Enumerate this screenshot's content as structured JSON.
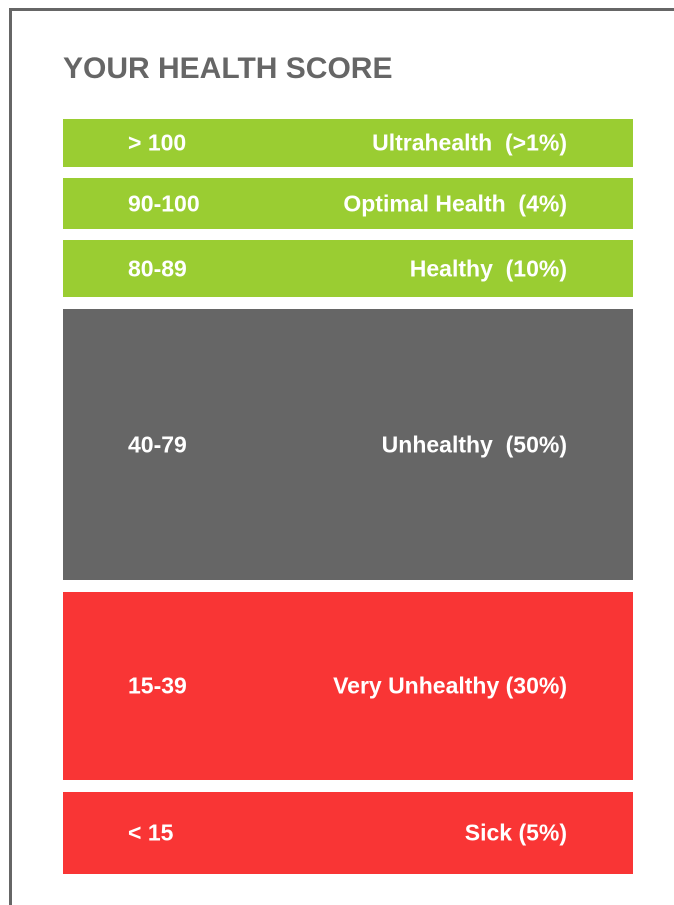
{
  "header": {
    "title": "YOUR HEALTH SCORE"
  },
  "rows": [
    {
      "range": "> 100",
      "label": "Ultrahealth  (>1%)"
    },
    {
      "range": "90-100",
      "label": "Optimal Health  (4%)"
    },
    {
      "range": "80-89",
      "label": "Healthy  (10%)"
    },
    {
      "range": "40-79",
      "label": "Unhealthy  (50%)"
    },
    {
      "range": "15-39",
      "label": "Very Unhealthy (30%)"
    },
    {
      "range": "< 15",
      "label": "Sick (5%)"
    }
  ]
}
